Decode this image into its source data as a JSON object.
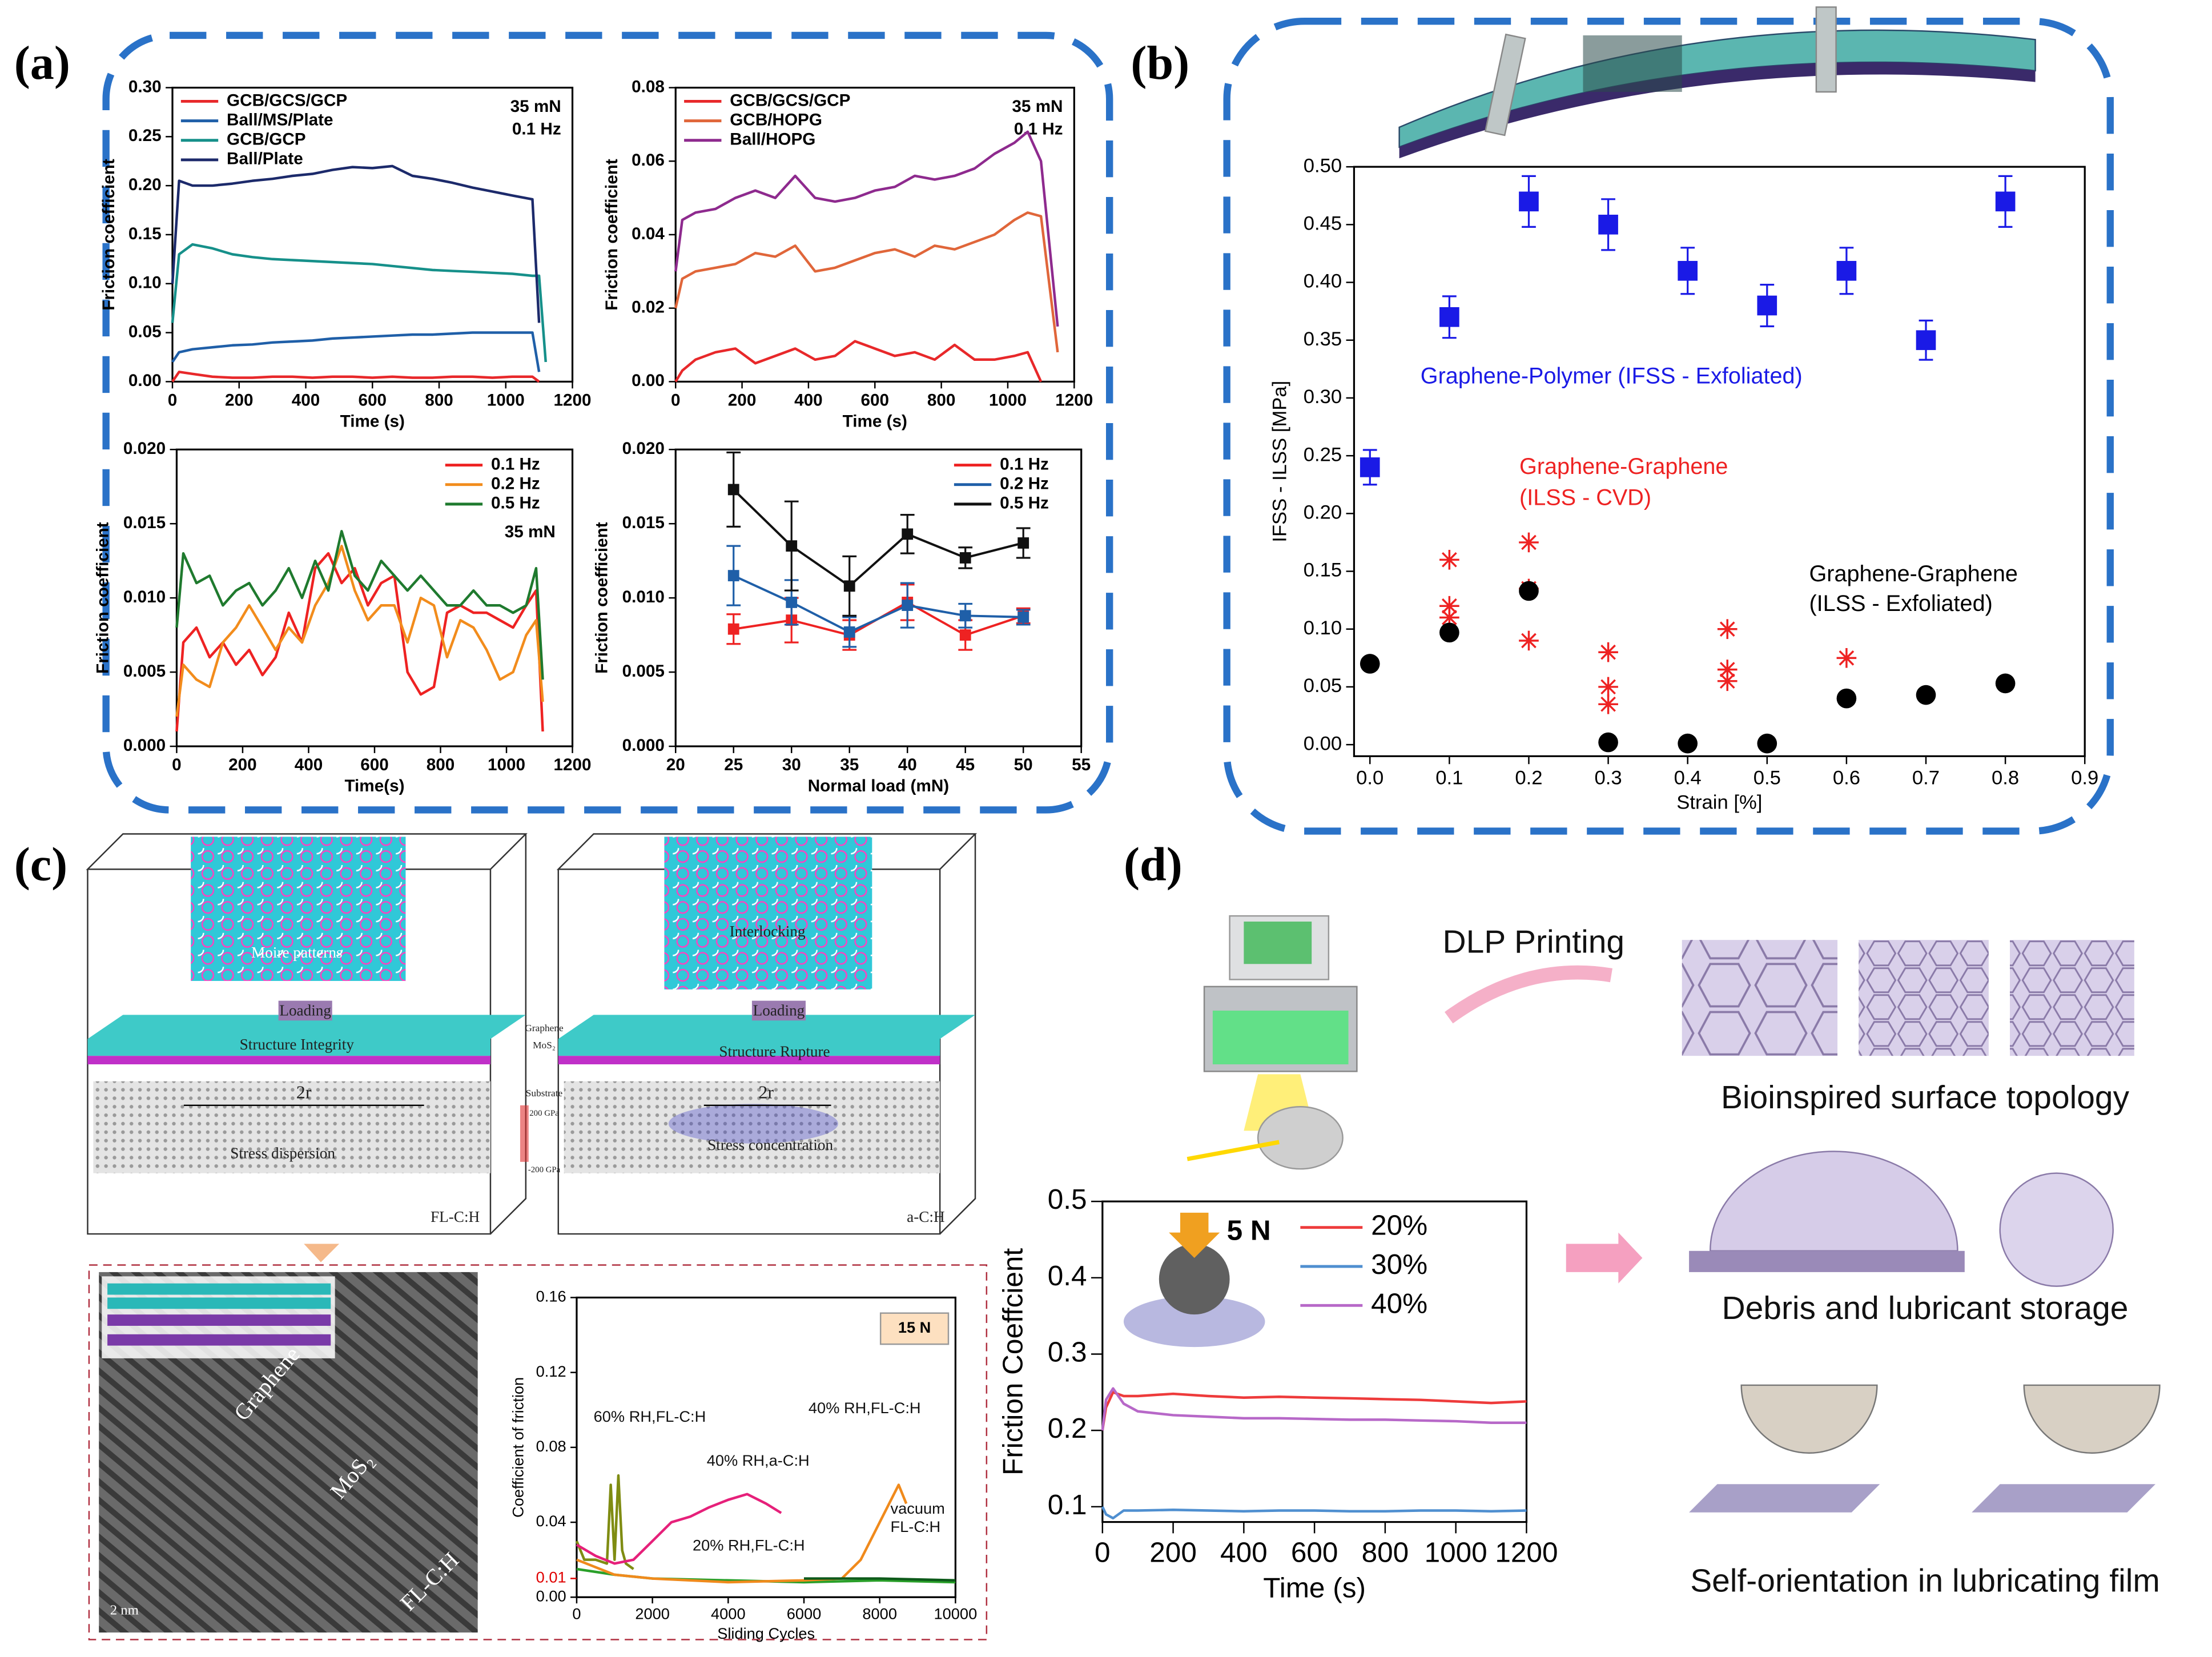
{
  "chart_data": [
    {
      "type": "line",
      "xlabel": "Time (s)",
      "ylabel": "Friction coefficient",
      "legend": "upper left",
      "annotations": [
        "35 mN",
        "0.1 Hz"
      ],
      "xlim": [
        0,
        1200
      ],
      "xticks": [
        0,
        200,
        400,
        600,
        800,
        1000,
        1200
      ],
      "ylim": [
        0,
        0.3
      ],
      "yticks": [
        {
          "value": 0,
          "label": "0.00"
        },
        0.05,
        {
          "value": 0.1,
          "label": "0.10"
        },
        0.15,
        {
          "value": 0.2,
          "label": "0.20"
        },
        0.25,
        {
          "value": 0.3,
          "label": "0.30"
        }
      ],
      "x": [
        0,
        20,
        60,
        120,
        180,
        240,
        300,
        360,
        420,
        480,
        540,
        600,
        660,
        720,
        780,
        840,
        900,
        960,
        1020,
        1080,
        1100,
        1120
      ],
      "series": [
        {
          "name": "GCB/GCS/GCP",
          "color": "#e8282a",
          "values": [
            0.0,
            0.01,
            0.008,
            0.005,
            0.004,
            0.004,
            0.005,
            0.005,
            0.004,
            0.005,
            0.005,
            0.004,
            0.005,
            0.004,
            0.004,
            0.005,
            0.005,
            0.004,
            0.005,
            0.005,
            0.0,
            null
          ]
        },
        {
          "name": "Ball/MS/Plate",
          "color": "#1f5fa8",
          "values": [
            0.02,
            0.03,
            0.033,
            0.035,
            0.037,
            0.038,
            0.04,
            0.041,
            0.042,
            0.044,
            0.045,
            0.046,
            0.047,
            0.048,
            0.048,
            0.049,
            0.05,
            0.05,
            0.05,
            0.05,
            0.01,
            null
          ]
        },
        {
          "name": "GCB/GCP",
          "color": "#16908a",
          "values": [
            0.06,
            0.13,
            0.14,
            0.136,
            0.13,
            0.127,
            0.125,
            0.124,
            0.123,
            0.122,
            0.121,
            0.12,
            0.118,
            0.116,
            0.114,
            0.113,
            0.112,
            0.111,
            0.11,
            0.108,
            0.108,
            0.02
          ]
        },
        {
          "name": "Ball/Plate",
          "color": "#1c2a6b",
          "values": [
            0.1,
            0.205,
            0.2,
            0.2,
            0.202,
            0.205,
            0.207,
            0.21,
            0.212,
            0.216,
            0.219,
            0.218,
            0.22,
            0.21,
            0.207,
            0.203,
            0.198,
            0.194,
            0.19,
            0.186,
            0.06,
            null
          ]
        }
      ]
    },
    {
      "type": "line",
      "xlabel": "Time (s)",
      "ylabel": "Friction coefficient",
      "legend": "upper left",
      "annotations": [
        "35 mN",
        "0.1 Hz"
      ],
      "xlim": [
        0,
        1200
      ],
      "xticks": [
        0,
        200,
        400,
        600,
        800,
        1000,
        1200
      ],
      "ylim": [
        0,
        0.08
      ],
      "yticks": [
        {
          "value": 0,
          "label": "0.00"
        },
        0.02,
        0.04,
        0.06,
        0.08
      ],
      "x": [
        0,
        20,
        60,
        120,
        180,
        240,
        300,
        360,
        420,
        480,
        540,
        600,
        660,
        720,
        780,
        840,
        900,
        960,
        1020,
        1060,
        1100,
        1150
      ],
      "series": [
        {
          "name": "GCB/GCS/GCP",
          "color": "#e8282a",
          "values": [
            0.0,
            0.003,
            0.006,
            0.008,
            0.009,
            0.005,
            0.007,
            0.009,
            0.006,
            0.007,
            0.011,
            0.009,
            0.007,
            0.008,
            0.006,
            0.01,
            0.006,
            0.006,
            0.007,
            0.008,
            0.0,
            null
          ]
        },
        {
          "name": "GCB/HOPG",
          "color": "#e0663a",
          "values": [
            0.02,
            0.028,
            0.03,
            0.031,
            0.032,
            0.035,
            0.034,
            0.037,
            0.03,
            0.031,
            0.033,
            0.035,
            0.036,
            0.034,
            0.037,
            0.036,
            0.038,
            0.04,
            0.044,
            0.046,
            0.045,
            0.008
          ]
        },
        {
          "name": "Ball/HOPG",
          "color": "#8e2a8e",
          "values": [
            0.03,
            0.044,
            0.046,
            0.047,
            0.05,
            0.052,
            0.05,
            0.056,
            0.05,
            0.049,
            0.05,
            0.052,
            0.053,
            0.056,
            0.055,
            0.056,
            0.058,
            0.062,
            0.065,
            0.068,
            0.06,
            0.015
          ]
        }
      ]
    },
    {
      "type": "line",
      "xlabel": "Time(s)",
      "ylabel": "Friction coefficient",
      "legend": "upper right",
      "annotations": [
        "35 mN"
      ],
      "xlim": [
        0,
        1200
      ],
      "xticks": [
        0,
        200,
        400,
        600,
        800,
        1000,
        1200
      ],
      "ylim": [
        0,
        0.02
      ],
      "yticks": [
        {
          "value": 0,
          "label": "0.000"
        },
        0.005,
        {
          "value": 0.01,
          "label": "0.010"
        },
        0.015,
        {
          "value": 0.02,
          "label": "0.020"
        }
      ],
      "x": [
        0,
        20,
        60,
        100,
        140,
        180,
        220,
        260,
        300,
        340,
        380,
        420,
        460,
        500,
        540,
        580,
        620,
        660,
        700,
        740,
        780,
        820,
        860,
        900,
        940,
        980,
        1020,
        1060,
        1090,
        1110
      ],
      "series": [
        {
          "name": "0.1 Hz",
          "color": "#ee2222",
          "values": [
            0.001,
            0.007,
            0.008,
            0.006,
            0.007,
            0.0055,
            0.0065,
            0.0048,
            0.006,
            0.009,
            0.007,
            0.012,
            0.013,
            0.011,
            0.012,
            0.0095,
            0.011,
            0.0115,
            0.005,
            0.0035,
            0.004,
            0.009,
            0.0095,
            0.009,
            0.009,
            0.0085,
            0.008,
            0.0095,
            0.0105,
            0.001
          ]
        },
        {
          "name": "0.2 Hz",
          "color": "#f28c1c",
          "values": [
            0.002,
            0.0055,
            0.0045,
            0.004,
            0.007,
            0.008,
            0.0095,
            0.008,
            0.0065,
            0.008,
            0.007,
            0.0095,
            0.011,
            0.0135,
            0.0105,
            0.0085,
            0.0095,
            0.0095,
            0.007,
            0.01,
            0.0095,
            0.006,
            0.0085,
            0.008,
            0.0065,
            0.0045,
            0.005,
            0.0075,
            0.0085,
            0.003
          ]
        },
        {
          "name": "0.5 Hz",
          "color": "#1f7a2e",
          "values": [
            0.008,
            0.013,
            0.011,
            0.0115,
            0.0095,
            0.0105,
            0.011,
            0.0095,
            0.0105,
            0.012,
            0.01,
            0.0125,
            0.0105,
            0.0145,
            0.0115,
            0.0105,
            0.0125,
            0.0115,
            0.0105,
            0.0115,
            0.0105,
            0.0095,
            0.0095,
            0.0105,
            0.0095,
            0.0095,
            0.009,
            0.0095,
            0.012,
            0.0045
          ]
        }
      ]
    },
    {
      "type": "errorline",
      "xlabel": "Normal load (mN)",
      "ylabel": "Friction coefficient",
      "legend": "upper right",
      "xlim": [
        20,
        55
      ],
      "xticks": [
        20,
        25,
        30,
        35,
        40,
        45,
        50,
        55
      ],
      "ylim": [
        0,
        0.02
      ],
      "yticks": [
        {
          "value": 0,
          "label": "0.000"
        },
        0.005,
        {
          "value": 0.01,
          "label": "0.010"
        },
        0.015,
        {
          "value": 0.02,
          "label": "0.020"
        }
      ],
      "x": [
        25,
        30,
        35,
        40,
        45,
        50
      ],
      "series": [
        {
          "name": "0.1 Hz",
          "color": "#ee2222",
          "values": [
            0.0079,
            0.0085,
            0.0075,
            0.0097,
            0.0075,
            0.0088
          ],
          "errors": [
            0.001,
            0.0015,
            0.001,
            0.0012,
            0.001,
            0.0005
          ]
        },
        {
          "name": "0.2 Hz",
          "color": "#1f5fa8",
          "values": [
            0.0115,
            0.0097,
            0.0077,
            0.0095,
            0.0088,
            0.0087
          ],
          "errors": [
            0.002,
            0.0015,
            0.001,
            0.0015,
            0.0008,
            0.0005
          ]
        },
        {
          "name": "0.5 Hz",
          "color": "#111111",
          "values": [
            0.0173,
            0.0135,
            0.0108,
            0.0143,
            0.0127,
            0.0137
          ],
          "errors": [
            0.0025,
            0.003,
            0.002,
            0.0013,
            0.0007,
            0.001
          ]
        }
      ]
    },
    {
      "type": "scatter",
      "xlabel": "Strain [%]",
      "ylabel": "IFSS - ILSS [MPa]",
      "xlim": [
        -0.02,
        0.9
      ],
      "xticks": [
        {
          "value": 0,
          "label": "0.0"
        },
        0.1,
        0.2,
        0.3,
        0.4,
        0.5,
        0.6,
        0.7,
        0.8,
        0.9
      ],
      "ylim": [
        -0.01,
        0.5
      ],
      "yticks": [
        {
          "value": 0,
          "label": "0.00"
        },
        0.05,
        {
          "value": 0.1,
          "label": "0.10"
        },
        0.15,
        {
          "value": 0.2,
          "label": "0.20"
        },
        0.25,
        {
          "value": 0.3,
          "label": "0.30"
        },
        0.35,
        {
          "value": 0.4,
          "label": "0.40"
        },
        0.45,
        {
          "value": 0.5,
          "label": "0.50"
        }
      ],
      "series": [
        {
          "name": [
            "Graphene-Polymer (IFSS - Exfoliated)"
          ],
          "color": "#1a1ae6",
          "marker": "square",
          "x": [
            0,
            0.1,
            0.2,
            0.3,
            0.4,
            0.5,
            0.6,
            0.7,
            0.8
          ],
          "values": [
            0.24,
            0.37,
            0.47,
            0.45,
            0.41,
            0.38,
            0.41,
            0.35,
            0.47
          ],
          "errors": [
            0.015,
            0.018,
            0.022,
            0.022,
            0.02,
            0.018,
            0.02,
            0.017,
            0.022
          ]
        },
        {
          "name": [
            "Graphene-Graphene",
            "(ILSS - CVD)"
          ],
          "color": "#ee2222",
          "marker": "star",
          "x": [
            0.1,
            0.1,
            0.1,
            0.2,
            0.2,
            0.2,
            0.3,
            0.3,
            0.3,
            0.45,
            0.45,
            0.45,
            0.6
          ],
          "values": [
            0.16,
            0.12,
            0.11,
            0.175,
            0.135,
            0.09,
            0.08,
            0.05,
            0.035,
            0.1,
            0.065,
            0.055,
            0.075
          ]
        },
        {
          "name": [
            "Graphene-Graphene",
            "(ILSS - Exfoliated)"
          ],
          "color": "#000000",
          "marker": "circle",
          "x": [
            0,
            0.1,
            0.2,
            0.3,
            0.4,
            0.5,
            0.6,
            0.7,
            0.8
          ],
          "values": [
            0.07,
            0.097,
            0.133,
            0.002,
            0.001,
            0.001,
            0.04,
            0.043,
            0.053
          ]
        }
      ]
    },
    {
      "type": "line",
      "xlabel": "Sliding Cycles",
      "ylabel": "Coefficient of friction",
      "annotations": [
        "15 N"
      ],
      "xlim": [
        0,
        10000
      ],
      "xticks": [
        0,
        2000,
        4000,
        6000,
        8000,
        10000
      ],
      "ylim": [
        0,
        0.16
      ],
      "yticks": [
        {
          "value": 0,
          "label": "0.00"
        },
        0.04,
        0.08,
        0.12,
        0.16
      ],
      "highlight_ytick": 0.01,
      "highlight_color": "#e00000",
      "series": [
        {
          "name": [
            "60% RH,FL-C:H"
          ],
          "color": "#7f8c12",
          "x": [
            0,
            200,
            500,
            800,
            900,
            1000,
            1100,
            1200,
            1300,
            1500
          ],
          "values": [
            0.03,
            0.02,
            0.02,
            0.018,
            0.06,
            0.02,
            0.065,
            0.025,
            0.018,
            0.015
          ]
        },
        {
          "name": [
            "40% RH,a-C:H"
          ],
          "color": "#e6207a",
          "x": [
            0,
            500,
            1000,
            1500,
            2000,
            2500,
            3000,
            3500,
            4000,
            4500,
            5000,
            5400
          ],
          "values": [
            0.028,
            0.022,
            0.018,
            0.02,
            0.03,
            0.04,
            0.043,
            0.048,
            0.052,
            0.055,
            0.05,
            0.045
          ]
        },
        {
          "name": [
            "20% RH,FL-C:H"
          ],
          "color": "#2aa02a",
          "x": [
            0,
            1000,
            2000,
            4000,
            6000,
            8000,
            10000
          ],
          "values": [
            0.015,
            0.012,
            0.01,
            0.009,
            0.008,
            0.009,
            0.008
          ]
        },
        {
          "name": [
            "40% RH,FL-C:H"
          ],
          "color": "#f08a1c",
          "x": [
            0,
            1000,
            2000,
            4000,
            6000,
            7000,
            7500,
            8000,
            8500,
            8700
          ],
          "values": [
            0.02,
            0.012,
            0.01,
            0.008,
            0.009,
            0.01,
            0.02,
            0.04,
            0.06,
            0.05
          ]
        },
        {
          "name": [
            "vacuum",
            "FL-C:H"
          ],
          "color": "#0d5a1a",
          "x": [
            6000,
            8000,
            10000
          ],
          "values": [
            0.01,
            0.01,
            0.009
          ]
        }
      ]
    },
    {
      "type": "line",
      "xlabel": "Time (s)",
      "ylabel": "Friction Coeffcient",
      "legend": "upper right",
      "annotations": [
        "5 N"
      ],
      "xlim": [
        0,
        1200
      ],
      "xticks": [
        0,
        200,
        400,
        600,
        800,
        1000,
        1200
      ],
      "ylim": [
        0.08,
        0.5
      ],
      "yticks": [
        0.1,
        0.2,
        0.3,
        0.4,
        0.5
      ],
      "x": [
        0,
        10,
        30,
        60,
        100,
        200,
        300,
        400,
        500,
        600,
        700,
        800,
        900,
        1000,
        1100,
        1200
      ],
      "series": [
        {
          "name": "20%",
          "color": "#ee3b3b",
          "values": [
            0.2,
            0.23,
            0.25,
            0.245,
            0.245,
            0.248,
            0.245,
            0.243,
            0.244,
            0.243,
            0.242,
            0.241,
            0.24,
            0.238,
            0.236,
            0.238
          ]
        },
        {
          "name": "30%",
          "color": "#4f8fd0",
          "values": [
            0.1,
            0.09,
            0.085,
            0.095,
            0.095,
            0.096,
            0.095,
            0.094,
            0.095,
            0.095,
            0.094,
            0.094,
            0.095,
            0.095,
            0.094,
            0.095
          ]
        },
        {
          "name": "40%",
          "color": "#b768c8",
          "values": [
            0.2,
            0.24,
            0.255,
            0.235,
            0.225,
            0.22,
            0.218,
            0.216,
            0.216,
            0.215,
            0.214,
            0.214,
            0.213,
            0.212,
            0.21,
            0.21
          ]
        }
      ]
    }
  ],
  "panels": {
    "labels": [
      "(a)",
      "(b)",
      "(c)",
      "(d)"
    ],
    "c": [
      "Moire patterns",
      "Interlocking",
      "Loading",
      "Loading",
      "Structure  Integrity",
      "Structure  Rupture",
      "Graphene",
      "MoS₂",
      "2r",
      "2r",
      "Substrate",
      "200 GPa",
      "-200 GPa",
      "Stress dispersion",
      "Stress concentration",
      "FL-C:H",
      "a-C:H",
      "Graphene",
      "MoS₂",
      "FL-C:H",
      "2 nm"
    ],
    "d": [
      "DLP Printing",
      "Bioinspired surface topology",
      "Debris and lubricant storage",
      "Self-orientation in lubricating film"
    ]
  }
}
